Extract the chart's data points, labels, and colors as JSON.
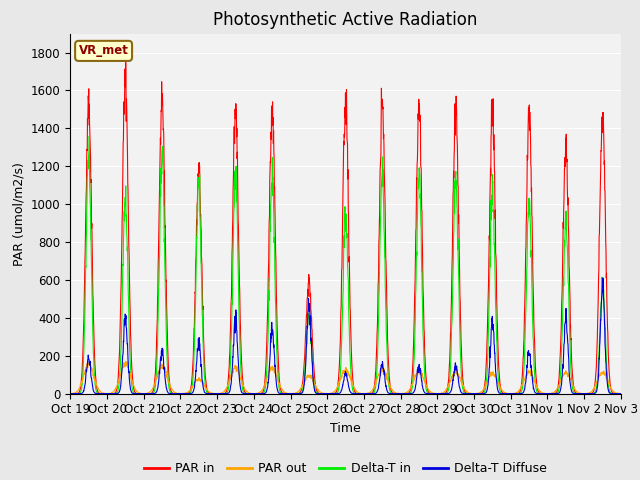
{
  "title": "Photosynthetic Active Radiation",
  "ylabel": "PAR (umol/m2/s)",
  "xlabel": "Time",
  "legend_label": "VR_met",
  "ylim": [
    0,
    1900
  ],
  "yticks": [
    0,
    200,
    400,
    600,
    800,
    1000,
    1200,
    1400,
    1600,
    1800
  ],
  "xtick_labels": [
    "Oct 19",
    "Oct 20",
    "Oct 21",
    "Oct 22",
    "Oct 23",
    "Oct 24",
    "Oct 25",
    "Oct 26",
    "Oct 27",
    "Oct 28",
    "Oct 29",
    "Oct 30",
    "Oct 31",
    "Nov 1",
    "Nov 2",
    "Nov 3"
  ],
  "colors": {
    "PAR in": "#ff0000",
    "PAR out": "#ffa500",
    "Delta-T in": "#00ee00",
    "Delta-T Diffuse": "#0000dd"
  },
  "background_color": "#e8e8e8",
  "plot_bg_color": "#f2f2f2",
  "legend_box_facecolor": "#ffffcc",
  "legend_box_edgecolor": "#8b6914",
  "title_fontsize": 12,
  "label_fontsize": 9,
  "tick_fontsize": 8.5
}
